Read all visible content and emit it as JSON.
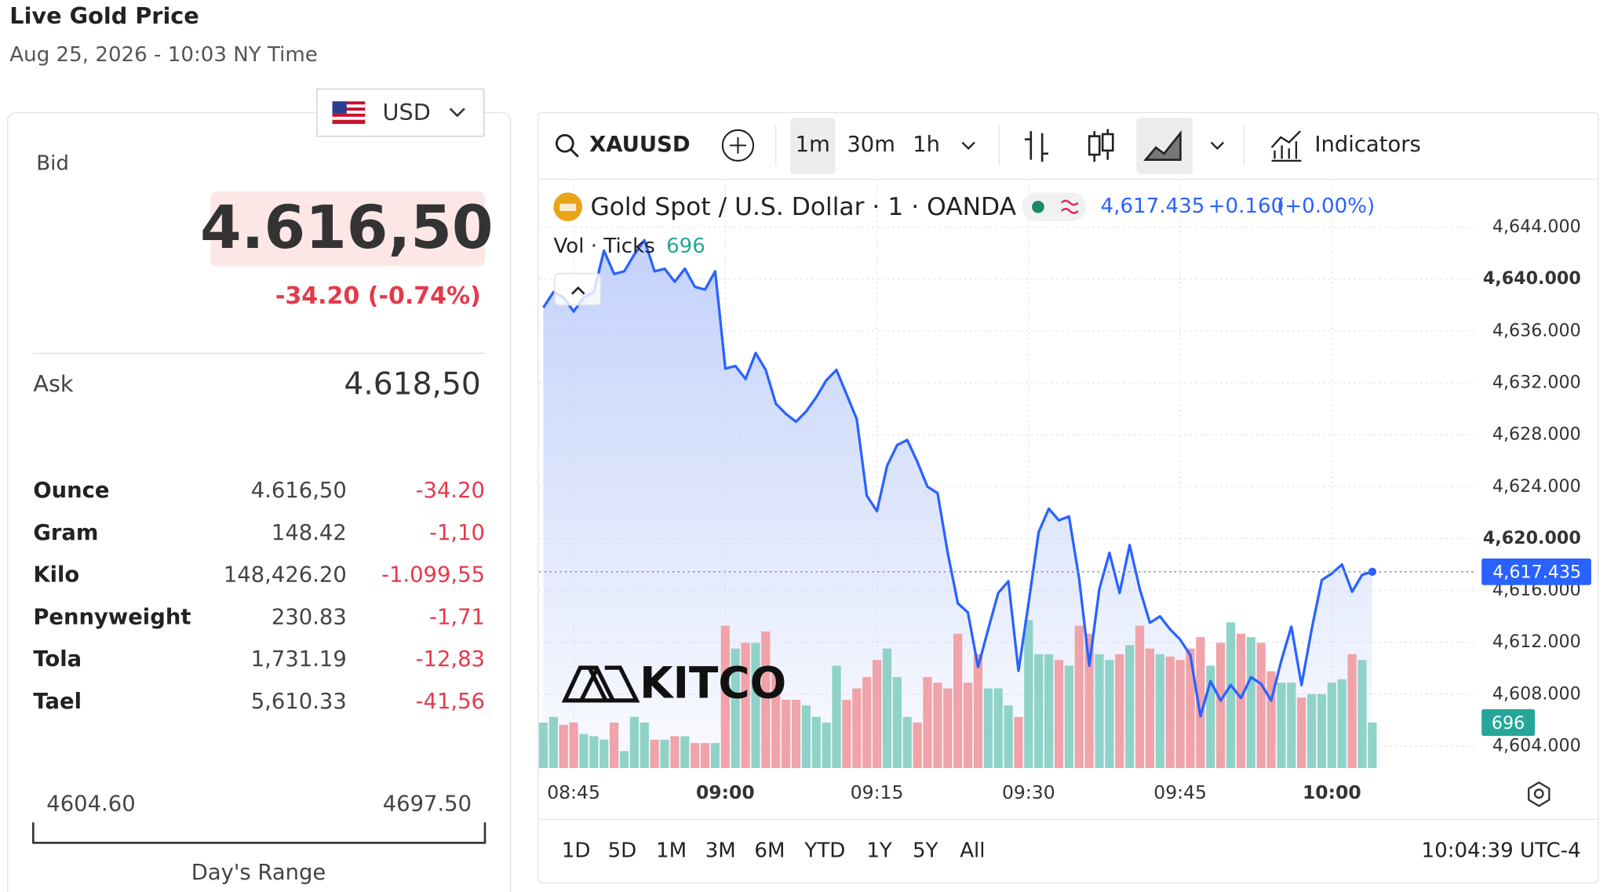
{
  "header": {
    "title": "Live Gold Price",
    "timestamp": "Aug 25, 2026 - 10:03 NY Time",
    "currency": "USD"
  },
  "quote": {
    "bid_label": "Bid",
    "bid": "4.616,50",
    "change": "-34.20 (-0.74%)",
    "ask_label": "Ask",
    "ask": "4.618,50"
  },
  "table": {
    "rows": [
      [
        "Ounce",
        "4.616,50",
        "-34.20"
      ],
      [
        "Gram",
        "148.42",
        "-1,10"
      ],
      [
        "Kilo",
        "148,426.20",
        "-1.099,55"
      ],
      [
        "Pennyweight",
        "230.83",
        "-1,71"
      ],
      [
        "Tola",
        "1,731.19",
        "-12,83"
      ],
      [
        "Tael",
        "5,610.33",
        "-41,56"
      ]
    ]
  },
  "day_range": {
    "low": "4604.60",
    "high": "4697.50",
    "label": "Day's Range"
  },
  "toolbar": {
    "symbol": "XAUUSD",
    "intervals": [
      "1m",
      "30m",
      "1h"
    ],
    "indicators": "Indicators"
  },
  "watermark": "KITCO",
  "chart_data": {
    "type": "line",
    "title": "Gold Spot / U.S. Dollar · 1 · OANDA",
    "last_value_label": "4,617.435",
    "change": "+0.160",
    "change_percent": "(+0.00%)",
    "volume_title": "Vol · Ticks",
    "volume_last_label": "696",
    "x": [
      "08:42",
      "08:43",
      "08:44",
      "08:45",
      "08:46",
      "08:47",
      "08:48",
      "08:49",
      "08:50",
      "08:51",
      "08:52",
      "08:53",
      "08:54",
      "08:55",
      "08:56",
      "08:57",
      "08:58",
      "08:59",
      "09:00",
      "09:01",
      "09:02",
      "09:03",
      "09:04",
      "09:05",
      "09:06",
      "09:07",
      "09:08",
      "09:09",
      "09:10",
      "09:11",
      "09:12",
      "09:13",
      "09:14",
      "09:15",
      "09:16",
      "09:17",
      "09:18",
      "09:19",
      "09:20",
      "09:21",
      "09:22",
      "09:23",
      "09:24",
      "09:25",
      "09:26",
      "09:27",
      "09:28",
      "09:29",
      "09:30",
      "09:31",
      "09:32",
      "09:33",
      "09:34",
      "09:35",
      "09:36",
      "09:37",
      "09:38",
      "09:39",
      "09:40",
      "09:41",
      "09:42",
      "09:43",
      "09:44",
      "09:45",
      "09:46",
      "09:47",
      "09:48",
      "09:49",
      "09:50",
      "09:51",
      "09:52",
      "09:53",
      "09:54",
      "09:55",
      "09:56",
      "09:57",
      "09:58",
      "09:59",
      "10:00",
      "10:01",
      "10:02",
      "10:03",
      "10:04"
    ],
    "xlim": [
      "08:42",
      "10:14"
    ],
    "xticks": [
      "08:45",
      "09:00",
      "09:15",
      "09:30",
      "09:45",
      "10:00"
    ],
    "ylim": [
      4602.3,
      4647.7
    ],
    "yticks": [
      {
        "value": 4604,
        "label": "4,604.000"
      },
      {
        "value": 4608,
        "label": "4,608.000"
      },
      {
        "value": 4612,
        "label": "4,612.000"
      },
      {
        "value": 4616,
        "label": "4,616.000"
      },
      {
        "value": 4620,
        "label": "4,620.000"
      },
      {
        "value": 4624,
        "label": "4,624.000"
      },
      {
        "value": 4628,
        "label": "4,628.000"
      },
      {
        "value": 4632,
        "label": "4,632.000"
      },
      {
        "value": 4636,
        "label": "4,636.000"
      },
      {
        "value": 4640,
        "label": "4,640.000"
      },
      {
        "value": 4644,
        "label": "4,644.000"
      }
    ],
    "y2lim": [
      0,
      9000
    ],
    "grid": true,
    "series": [
      {
        "type": "line",
        "color": "#2962ff",
        "values": [
          4637.8,
          4639.0,
          4638.6,
          4637.5,
          4638.6,
          4639.0,
          4642.2,
          4640.4,
          4640.6,
          4641.9,
          4643.0,
          4640.6,
          4640.8,
          4639.8,
          4640.8,
          4639.4,
          4639.2,
          4640.6,
          4633.1,
          4633.3,
          4632.3,
          4634.3,
          4633.0,
          4630.4,
          4629.6,
          4629.0,
          4629.8,
          4630.9,
          4632.2,
          4633.0,
          4631.1,
          4629.2,
          4623.3,
          4622.1,
          4625.6,
          4627.2,
          4627.6,
          4625.9,
          4624.0,
          4623.5,
          4618.9,
          4615.0,
          4614.3,
          4610.1,
          4613.0,
          4615.8,
          4616.7,
          4609.8,
          4615.0,
          4620.5,
          4622.3,
          4621.4,
          4621.7,
          4616.9,
          4610.2,
          4616.1,
          4618.9,
          4615.8,
          4619.5,
          4616.1,
          4613.5,
          4614.0,
          4613.0,
          4612.2,
          4611.0,
          4606.3,
          4609.0,
          4607.5,
          4608.7,
          4607.7,
          4609.3,
          4608.8,
          4607.5,
          4610.6,
          4613.2,
          4608.7,
          4613.0,
          4616.8,
          4617.3,
          4618.0,
          4615.9,
          4617.2,
          4617.435
        ]
      },
      {
        "type": "bar",
        "axis": "y2",
        "up_color": "#8fd3c8",
        "down_color": "#f0a3a8",
        "values": [
          696,
          783,
          661,
          696,
          522,
          487,
          435,
          696,
          261,
          783,
          696,
          435,
          435,
          487,
          487,
          383,
          383,
          383,
          2175,
          1827,
          1914,
          1914,
          2088,
          1479,
          1044,
          1044,
          957,
          783,
          696,
          1566,
          1044,
          1218,
          1392,
          1653,
          1827,
          1392,
          783,
          696,
          1392,
          1305,
          1218,
          2053,
          1305,
          1740,
          1218,
          1218,
          957,
          783,
          2262,
          1740,
          1740,
          1653,
          1566,
          2175,
          2053,
          1740,
          1653,
          1740,
          1879,
          2175,
          1827,
          1740,
          1705,
          1653,
          1827,
          2001,
          1566,
          1914,
          2227,
          2053,
          2001,
          1914,
          1479,
          1305,
          1305,
          1079,
          1131,
          1131,
          1305,
          1357,
          1740,
          1653,
          696
        ]
      }
    ]
  },
  "footer": {
    "ranges": [
      "1D",
      "5D",
      "1M",
      "3M",
      "6M",
      "YTD",
      "1Y",
      "5Y",
      "All"
    ],
    "clock": "10:04:39 UTC-4"
  }
}
